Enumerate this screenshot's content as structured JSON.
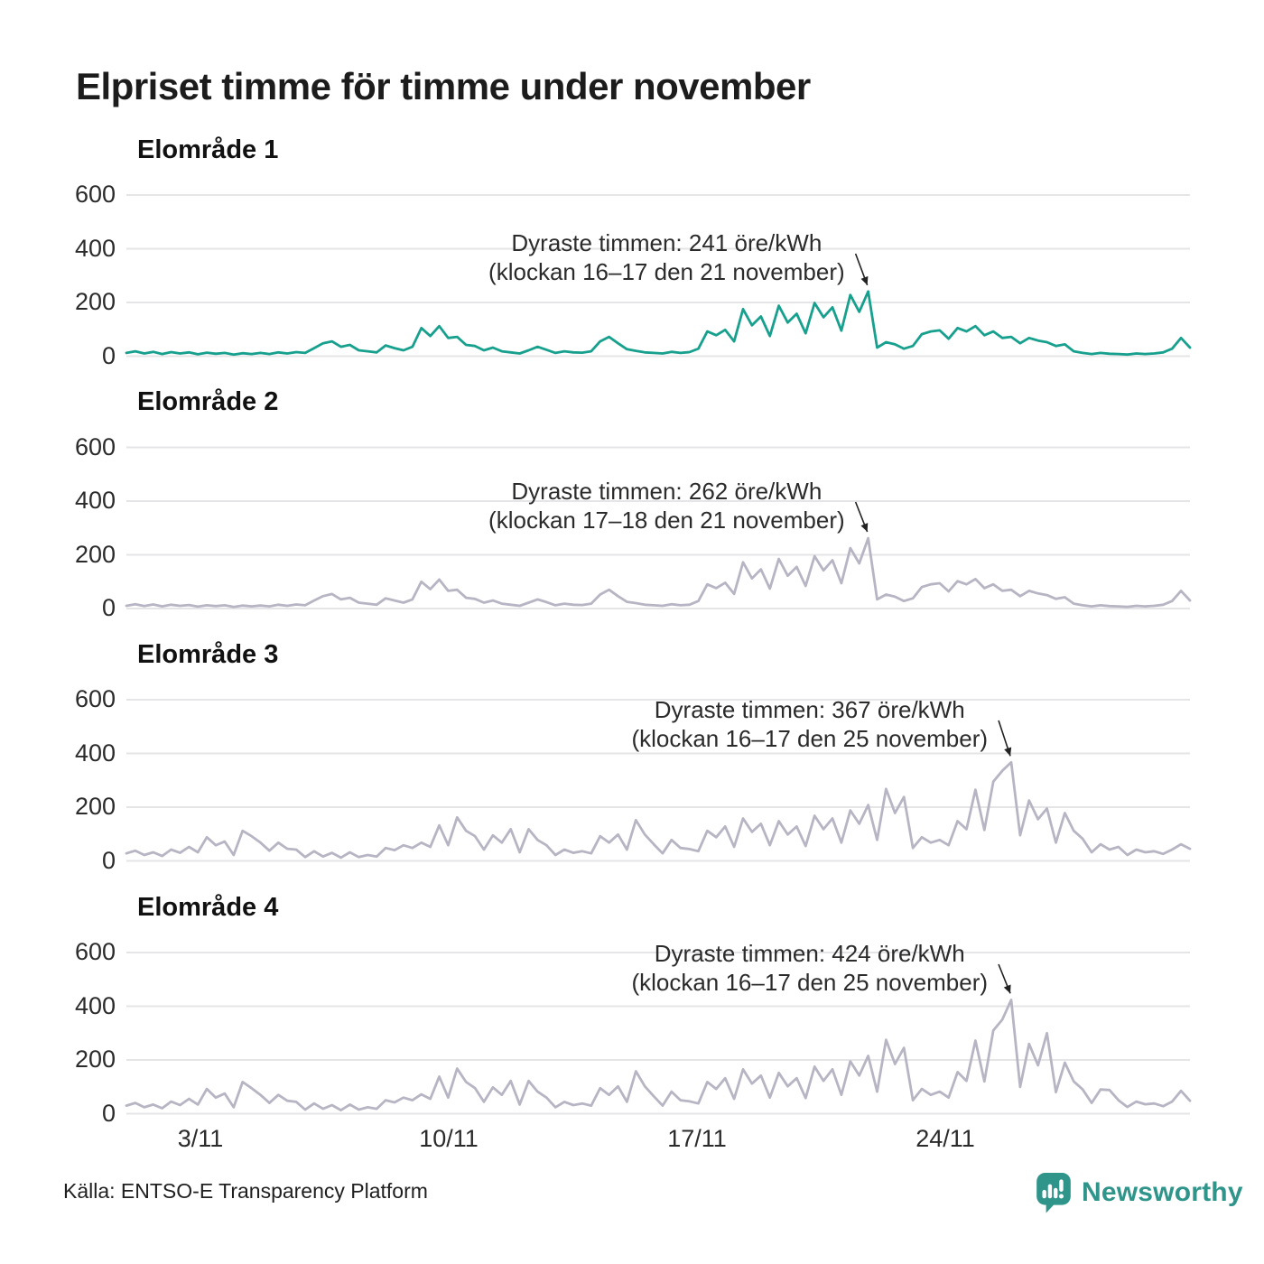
{
  "page": {
    "title": "Elpriset timme för timme under november",
    "source": "Källa: ENTSO-E Transparency Platform",
    "brand": "Newsworthy"
  },
  "colors": {
    "series_highlight": "#17a08d",
    "series_muted": "#b7b5c3",
    "gridline": "#e5e5e7",
    "annotation_arrow": "#222222",
    "brand_teal": "#2f948a"
  },
  "chart_data": {
    "type": "line",
    "title": "Elpriset timme för timme under november",
    "unit": "öre/kWh",
    "grid": true,
    "yticks": [
      0,
      200,
      400,
      600
    ],
    "ylim": [
      0,
      650
    ],
    "x_tick_labels": [
      "3/11",
      "10/11",
      "17/11",
      "24/11"
    ],
    "x_range_days": 30,
    "samples_per_day": 4,
    "panels": [
      {
        "label": "Elområde 1",
        "color": "#17a08d",
        "annotation_line1": "Dyraste timmen: 241 öre/kWh",
        "annotation_line2": "(klockan 16–17 den 21 november)",
        "peak_value": 241,
        "peak_time": "klockan 16–17 den 21 november",
        "values": [
          12,
          18,
          10,
          16,
          8,
          15,
          10,
          14,
          7,
          13,
          9,
          12,
          6,
          11,
          8,
          12,
          8,
          14,
          10,
          15,
          12,
          30,
          48,
          55,
          35,
          42,
          22,
          18,
          14,
          40,
          30,
          22,
          35,
          105,
          75,
          112,
          68,
          72,
          42,
          38,
          22,
          32,
          18,
          14,
          10,
          22,
          35,
          24,
          12,
          18,
          14,
          13,
          18,
          55,
          72,
          48,
          26,
          20,
          14,
          12,
          10,
          16,
          12,
          15,
          28,
          92,
          78,
          98,
          55,
          175,
          115,
          148,
          75,
          188,
          125,
          158,
          85,
          198,
          145,
          182,
          95,
          228,
          165,
          241,
          32,
          52,
          44,
          28,
          38,
          82,
          92,
          96,
          65,
          105,
          92,
          112,
          78,
          92,
          68,
          72,
          48,
          68,
          58,
          52,
          38,
          44,
          18,
          12,
          8,
          12,
          9,
          8,
          6,
          10,
          8,
          10,
          14,
          28,
          68,
          32
        ]
      },
      {
        "label": "Elområde 2",
        "color": "#b7b5c3",
        "annotation_line1": "Dyraste timmen: 262 öre/kWh",
        "annotation_line2": "(klockan 17–18 den 21 november)",
        "peak_value": 262,
        "peak_time": "klockan 17–18 den 21 november",
        "values": [
          10,
          16,
          9,
          15,
          8,
          14,
          10,
          13,
          7,
          12,
          9,
          12,
          6,
          11,
          8,
          11,
          8,
          14,
          10,
          15,
          12,
          30,
          46,
          54,
          34,
          40,
          22,
          18,
          14,
          38,
          30,
          22,
          34,
          100,
          72,
          108,
          66,
          70,
          40,
          36,
          22,
          30,
          18,
          14,
          10,
          22,
          34,
          24,
          12,
          18,
          14,
          13,
          18,
          52,
          70,
          46,
          25,
          20,
          14,
          12,
          10,
          16,
          12,
          14,
          28,
          90,
          76,
          96,
          54,
          172,
          112,
          146,
          74,
          185,
          122,
          155,
          84,
          195,
          142,
          180,
          94,
          225,
          168,
          262,
          34,
          52,
          44,
          28,
          38,
          80,
          90,
          94,
          64,
          102,
          90,
          110,
          76,
          90,
          66,
          70,
          46,
          66,
          56,
          50,
          36,
          42,
          18,
          12,
          8,
          12,
          9,
          8,
          6,
          10,
          8,
          10,
          14,
          28,
          66,
          30
        ]
      },
      {
        "label": "Elområde 3",
        "color": "#b7b5c3",
        "annotation_line1": "Dyraste timmen: 367 öre/kWh",
        "annotation_line2": "(klockan 16–17 den 25 november)",
        "peak_value": 367,
        "peak_time": "klockan 16–17 den 25 november",
        "values": [
          28,
          38,
          22,
          32,
          18,
          42,
          30,
          52,
          32,
          88,
          58,
          72,
          22,
          112,
          92,
          68,
          38,
          68,
          45,
          42,
          14,
          36,
          16,
          30,
          12,
          32,
          14,
          22,
          16,
          48,
          40,
          58,
          48,
          68,
          52,
          132,
          58,
          162,
          112,
          92,
          42,
          95,
          68,
          118,
          32,
          118,
          78,
          58,
          22,
          42,
          30,
          36,
          28,
          92,
          68,
          98,
          42,
          152,
          98,
          62,
          28,
          78,
          48,
          44,
          36,
          112,
          88,
          128,
          52,
          158,
          108,
          138,
          58,
          148,
          98,
          128,
          55,
          168,
          118,
          158,
          68,
          188,
          138,
          208,
          78,
          268,
          178,
          238,
          48,
          88,
          68,
          78,
          58,
          148,
          118,
          265,
          115,
          295,
          335,
          367,
          95,
          225,
          155,
          195,
          68,
          178,
          112,
          82,
          32,
          62,
          42,
          52,
          22,
          42,
          32,
          36,
          26,
          42,
          62,
          45
        ]
      },
      {
        "label": "Elområde 4",
        "color": "#b7b5c3",
        "annotation_line1": "Dyraste timmen: 424 öre/kWh",
        "annotation_line2": "(klockan 16–17 den 25 november)",
        "peak_value": 424,
        "peak_time": "klockan 16–17 den 25 november",
        "values": [
          30,
          40,
          24,
          34,
          20,
          45,
          32,
          55,
          34,
          92,
          60,
          75,
          24,
          118,
          95,
          70,
          40,
          70,
          48,
          44,
          15,
          38,
          18,
          32,
          13,
          34,
          15,
          24,
          18,
          50,
          42,
          60,
          50,
          72,
          55,
          138,
          60,
          168,
          118,
          95,
          44,
          98,
          70,
          122,
          34,
          122,
          82,
          60,
          24,
          44,
          32,
          38,
          30,
          95,
          70,
          102,
          44,
          158,
          102,
          65,
          30,
          82,
          50,
          46,
          38,
          118,
          92,
          132,
          55,
          165,
          112,
          142,
          60,
          152,
          102,
          132,
          58,
          175,
          122,
          165,
          70,
          195,
          142,
          215,
          82,
          275,
          185,
          245,
          50,
          92,
          70,
          82,
          60,
          155,
          122,
          272,
          120,
          310,
          350,
          424,
          100,
          260,
          180,
          300,
          80,
          190,
          120,
          90,
          40,
          90,
          88,
          50,
          25,
          45,
          35,
          38,
          28,
          45,
          85,
          48
        ]
      }
    ]
  }
}
